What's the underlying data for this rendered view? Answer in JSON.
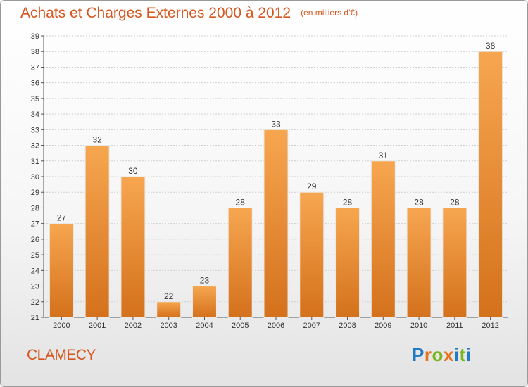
{
  "header": {
    "title": "Achats et Charges Externes 2000 à 2012",
    "unit": "(en milliers d'€)"
  },
  "footer": {
    "commune": "CLAMECY",
    "logo_text": "Proxiti"
  },
  "colors": {
    "bar_light": "#f7a650",
    "bar_dark": "#d4711c",
    "title": "#d5561e"
  },
  "chart_data": {
    "type": "bar",
    "title": "Achats et Charges Externes 2000 à 2012",
    "categories": [
      "2000",
      "2001",
      "2002",
      "2003",
      "2004",
      "2005",
      "2006",
      "2007",
      "2008",
      "2009",
      "2010",
      "2011",
      "2012"
    ],
    "values": [
      27,
      32,
      30,
      22,
      23,
      28,
      33,
      29,
      28,
      31,
      28,
      28,
      38
    ],
    "ylim": [
      21,
      39
    ],
    "yticks": [
      21,
      22,
      23,
      24,
      25,
      26,
      27,
      28,
      29,
      30,
      31,
      32,
      33,
      34,
      35,
      36,
      37,
      38,
      39
    ],
    "grid": true,
    "legend": "none"
  }
}
